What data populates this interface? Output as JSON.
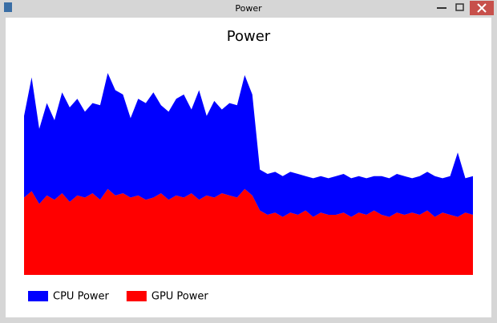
{
  "window_title": "Power",
  "chart_data": {
    "type": "stacked-area",
    "title": "Power",
    "ylim": [
      0,
      100
    ],
    "series": [
      {
        "name": "CPU Power",
        "color": "#0000ff",
        "values": [
          38,
          53,
          35,
          43,
          37,
          47,
          44,
          45,
          40,
          42,
          44,
          54,
          49,
          46,
          37,
          45,
          45,
          49,
          41,
          41,
          45,
          48,
          39,
          51,
          37,
          45,
          39,
          43,
          43,
          53,
          47,
          19,
          19,
          19,
          19,
          19,
          19,
          16,
          18,
          17,
          17,
          18,
          18,
          18,
          17,
          17,
          16,
          18,
          18,
          18,
          18,
          16,
          18,
          18,
          19,
          16,
          18,
          30,
          16,
          18
        ]
      },
      {
        "name": "GPU Power",
        "color": "#ff0000",
        "values": [
          36,
          39,
          33,
          37,
          35,
          38,
          34,
          37,
          36,
          38,
          35,
          40,
          37,
          38,
          36,
          37,
          35,
          36,
          38,
          35,
          37,
          36,
          38,
          35,
          37,
          36,
          38,
          37,
          36,
          40,
          37,
          30,
          28,
          29,
          27,
          29,
          28,
          30,
          27,
          29,
          28,
          28,
          29,
          27,
          29,
          28,
          30,
          28,
          27,
          29,
          28,
          29,
          28,
          30,
          27,
          29,
          28,
          27,
          29,
          28
        ]
      }
    ]
  }
}
